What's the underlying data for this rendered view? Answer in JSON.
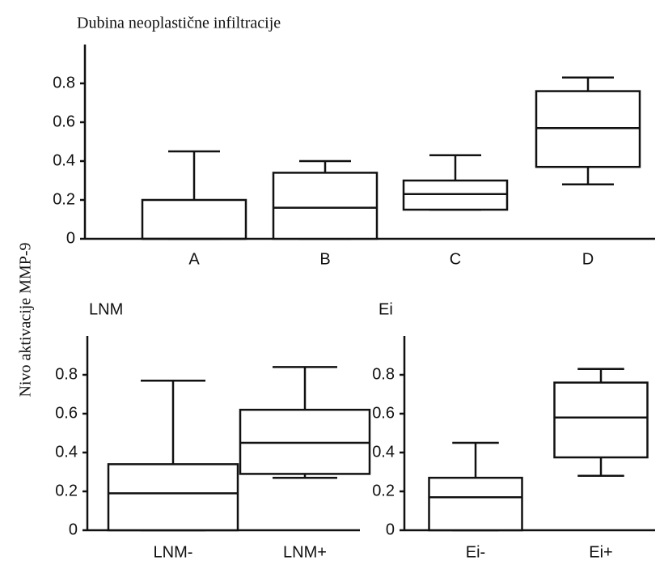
{
  "ylabel": "Nivo aktivacije MMP-9",
  "chart_data": [
    {
      "type": "box",
      "title": "Dubina neoplastične infiltracije",
      "categories": [
        "A",
        "B",
        "C",
        "D"
      ],
      "stats": [
        {
          "min": 0,
          "q1": 0,
          "median": 0,
          "q3": 0.2,
          "max": 0.45
        },
        {
          "min": 0,
          "q1": 0,
          "median": 0.16,
          "q3": 0.34,
          "max": 0.4
        },
        {
          "min": 0.15,
          "q1": 0.15,
          "median": 0.23,
          "q3": 0.3,
          "max": 0.43
        },
        {
          "min": 0.28,
          "q1": 0.37,
          "median": 0.57,
          "q3": 0.76,
          "max": 0.83
        }
      ],
      "color": "#ffffff",
      "ylim": [
        0,
        1
      ],
      "yticks": [
        0,
        0.2,
        0.4,
        0.6,
        0.8
      ]
    },
    {
      "type": "box",
      "title": "LNM",
      "categories": [
        "LNM-",
        "LNM+"
      ],
      "stats": [
        {
          "min": 0,
          "q1": 0,
          "median": 0.19,
          "q3": 0.34,
          "max": 0.77
        },
        {
          "min": 0.27,
          "q1": 0.29,
          "median": 0.45,
          "q3": 0.62,
          "max": 0.84
        }
      ],
      "color": "#ffffff",
      "ylim": [
        0,
        1
      ],
      "yticks": [
        0,
        0.2,
        0.4,
        0.6,
        0.8
      ]
    },
    {
      "type": "box",
      "title": "Ei",
      "categories": [
        "Ei-",
        "Ei+"
      ],
      "stats": [
        {
          "min": 0,
          "q1": 0,
          "median": 0.17,
          "q3": 0.27,
          "max": 0.45
        },
        {
          "min": 0.28,
          "q1": 0.375,
          "median": 0.58,
          "q3": 0.76,
          "max": 0.83
        }
      ],
      "color": "#ffffff",
      "ylim": [
        0,
        1
      ],
      "yticks": [
        0,
        0.2,
        0.4,
        0.6,
        0.8
      ]
    }
  ]
}
